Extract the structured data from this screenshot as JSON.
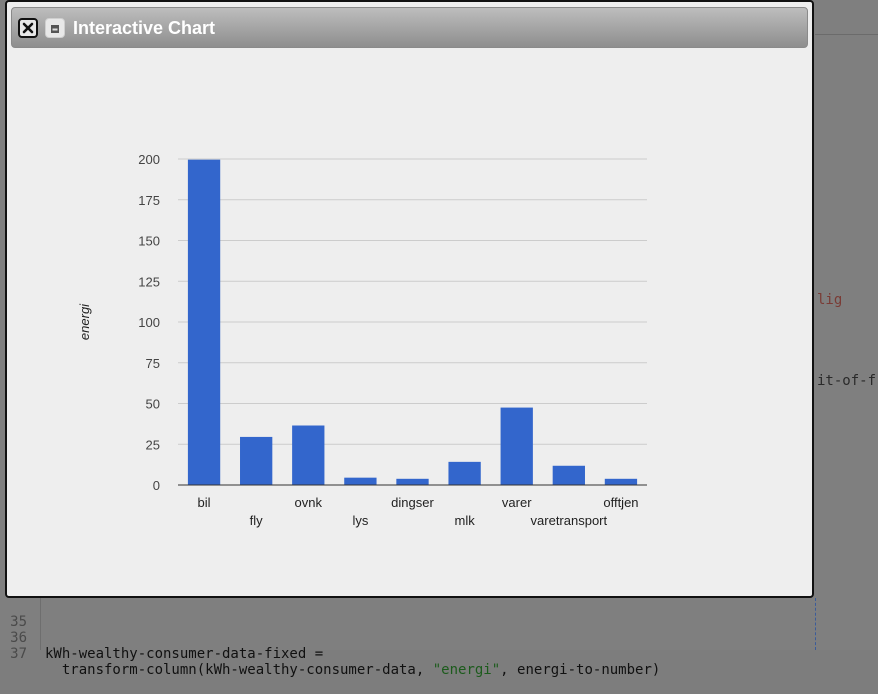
{
  "window": {
    "title": "Interactive Chart",
    "close_icon": "close-icon",
    "minimize_icon": "minimize-icon"
  },
  "chart_data": {
    "type": "bar",
    "categories": [
      "bil",
      "fly",
      "ovnk",
      "lys",
      "dingser",
      "mlk",
      "varer",
      "varetransport",
      "offtjen"
    ],
    "values": [
      199.6,
      29.5,
      36.5,
      4.5,
      3.8,
      14.2,
      47.5,
      11.8,
      3.8
    ],
    "ylabel": "energi",
    "xlabel": "",
    "ylim": [
      0,
      200
    ],
    "yticks": [
      0,
      25,
      50,
      75,
      100,
      125,
      150,
      175,
      200
    ],
    "bar_color": "#3366cc",
    "grid": true
  },
  "editor": {
    "edge_lig": "lig",
    "edge_fit": "it-of-f",
    "lines": [
      {
        "num": "35",
        "text": ""
      },
      {
        "num": "36",
        "text": "kWh-wealthy-consumer-data-fixed ="
      },
      {
        "num": "37",
        "pre": "  transform-column(kWh-wealthy-consumer-data, ",
        "str": "\"energi\"",
        "post": ", energi-to-number)"
      }
    ]
  }
}
